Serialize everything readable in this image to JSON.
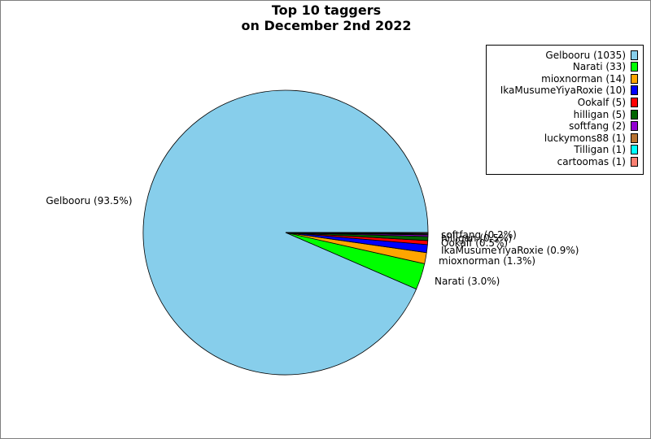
{
  "chart_data": {
    "type": "pie",
    "title": [
      "Top 10 taggers",
      "on December 2nd 2022"
    ],
    "slices": [
      {
        "name": "Gelbooru",
        "count": 1035,
        "legend": "Gelbooru (1035)",
        "label": "Gelbooru (93.5%)",
        "color": "#87ceeb"
      },
      {
        "name": "Narati",
        "count": 33,
        "legend": "Narati (33)",
        "label": "Narati (3.0%)",
        "color": "#00ff00"
      },
      {
        "name": "mioxnorman",
        "count": 14,
        "legend": "mioxnorman (14)",
        "label": "mioxnorman (1.3%)",
        "color": "#ffa500"
      },
      {
        "name": "IkaMusumeYiyaRoxie",
        "count": 10,
        "legend": "IkaMusumeYiyaRoxie (10)",
        "label": "IkaMusumeYiyaRoxie (0.9%)",
        "color": "#0000ff"
      },
      {
        "name": "Ookalf",
        "count": 5,
        "legend": "Ookalf (5)",
        "label": "Ookalf (0.5%)",
        "color": "#ff0000"
      },
      {
        "name": "hilligan",
        "count": 5,
        "legend": "hilligan (5)",
        "label": "hilligan (0.5%)",
        "color": "#006400"
      },
      {
        "name": "softfang",
        "count": 2,
        "legend": "softfang (2)",
        "label": "softfang (0.2%)",
        "color": "#9400d3"
      },
      {
        "name": "luckymons88",
        "count": 1,
        "legend": "luckymons88 (1)",
        "label": "luckymons88 (0.1%)",
        "color": "#b87333"
      },
      {
        "name": "Tilligan",
        "count": 1,
        "legend": "Tilligan (1)",
        "label": "Tilligan (0.1%)",
        "color": "#00ffff"
      },
      {
        "name": "cartoomas",
        "count": 1,
        "legend": "cartoomas (1)",
        "label": "cartoomas (0.1%)",
        "color": "#fa8072"
      }
    ],
    "legend_position": "top-right",
    "start_angle": "right, counter-clockwise"
  }
}
